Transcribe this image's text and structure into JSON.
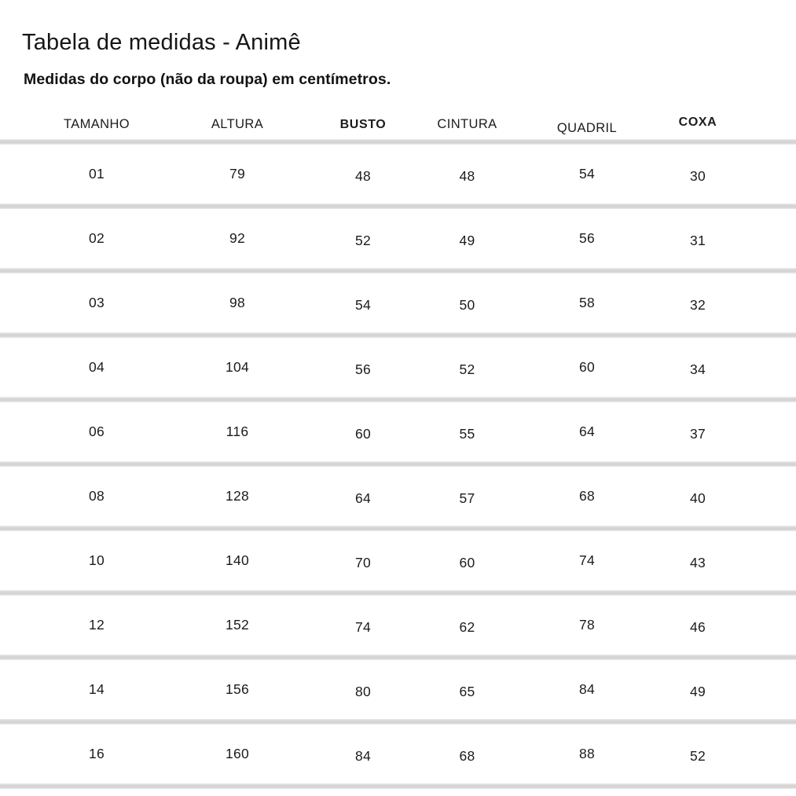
{
  "page": {
    "background_color": "#ffffff",
    "text_color": "#1b1b1b",
    "divider_color": "#d4d4d4"
  },
  "header": {
    "title": "Tabela de medidas - Animê",
    "subtitle": "Medidas do corpo (não da roupa) em centímetros."
  },
  "table": {
    "columns": [
      "TAMANHO",
      "ALTURA",
      "BUSTO",
      "CINTURA",
      "QUADRIL",
      "COXA"
    ],
    "bold_columns": [
      "BUSTO",
      "COXA"
    ],
    "rows": [
      [
        "01",
        "79",
        "48",
        "48",
        "54",
        "30"
      ],
      [
        "02",
        "92",
        "52",
        "49",
        "56",
        "31"
      ],
      [
        "03",
        "98",
        "54",
        "50",
        "58",
        "32"
      ],
      [
        "04",
        "104",
        "56",
        "52",
        "60",
        "34"
      ],
      [
        "06",
        "116",
        "60",
        "55",
        "64",
        "37"
      ],
      [
        "08",
        "128",
        "64",
        "57",
        "68",
        "40"
      ],
      [
        "10",
        "140",
        "70",
        "60",
        "74",
        "43"
      ],
      [
        "12",
        "152",
        "74",
        "62",
        "78",
        "46"
      ],
      [
        "14",
        "156",
        "80",
        "65",
        "84",
        "49"
      ],
      [
        "16",
        "160",
        "84",
        "68",
        "88",
        "52"
      ]
    ]
  },
  "chart_data": {
    "type": "table",
    "title": "Tabela de medidas - Animê",
    "subtitle": "Medidas do corpo (não da roupa) em centímetros.",
    "columns": [
      "TAMANHO",
      "ALTURA",
      "BUSTO",
      "CINTURA",
      "QUADRIL",
      "COXA"
    ],
    "rows": [
      [
        "01",
        79,
        48,
        48,
        54,
        30
      ],
      [
        "02",
        92,
        52,
        49,
        56,
        31
      ],
      [
        "03",
        98,
        54,
        50,
        58,
        32
      ],
      [
        "04",
        104,
        56,
        52,
        60,
        34
      ],
      [
        "06",
        116,
        60,
        55,
        64,
        37
      ],
      [
        "08",
        128,
        64,
        57,
        68,
        40
      ],
      [
        "10",
        140,
        70,
        60,
        74,
        43
      ],
      [
        "12",
        152,
        74,
        62,
        78,
        46
      ],
      [
        "14",
        156,
        80,
        65,
        84,
        49
      ],
      [
        "16",
        160,
        84,
        68,
        88,
        52
      ]
    ]
  }
}
